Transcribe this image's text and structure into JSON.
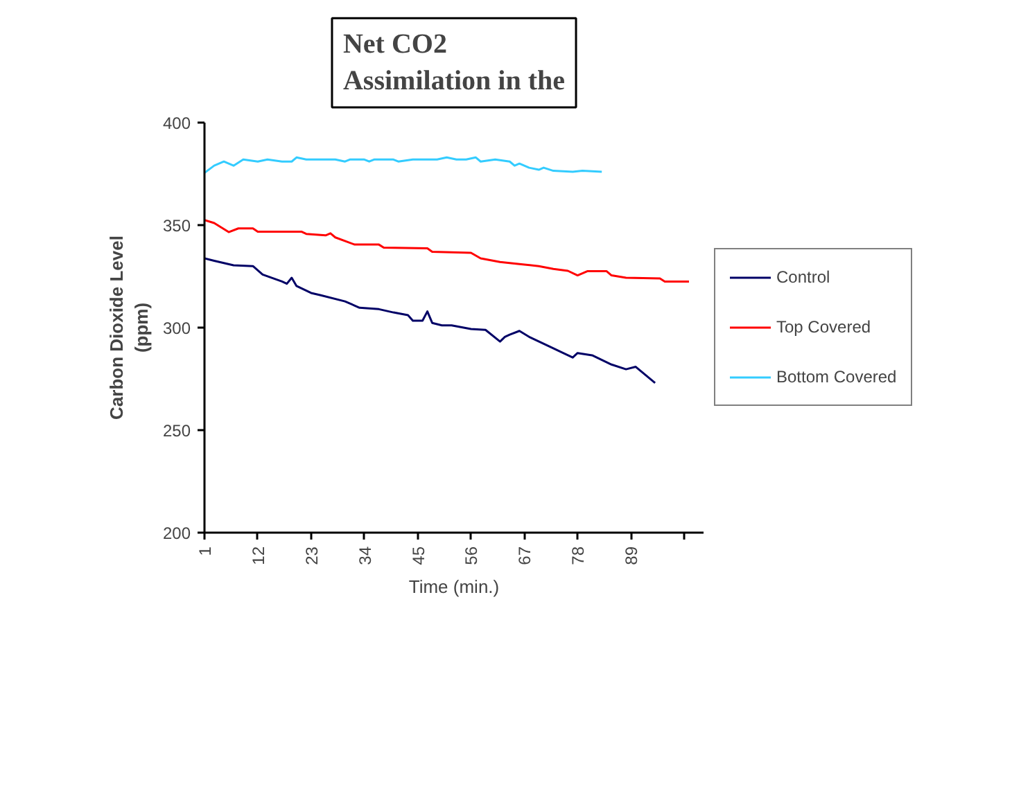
{
  "chart_data": {
    "type": "line",
    "title": "Net CO2\nAssimilation in the",
    "xlabel": "Time (min.)",
    "ylabel": "Carbon Dioxide Level\n(ppm)",
    "xlim": [
      1,
      104
    ],
    "xticks": [
      1,
      12,
      23,
      34,
      45,
      56,
      67,
      78,
      89,
      {
        "value": 100,
        "label": null
      }
    ],
    "ylim": [
      200,
      400
    ],
    "yticks": [
      200,
      250,
      300,
      350,
      400
    ],
    "grid": false,
    "legend": "right",
    "marker": "none",
    "line_style": "solid",
    "series": [
      {
        "name": "Control",
        "color": "#000066",
        "x": [
          1,
          3,
          7,
          11,
          13,
          17,
          18,
          19,
          20,
          23,
          25,
          30,
          33,
          37,
          40,
          43,
          44,
          46,
          47,
          48,
          50,
          52,
          56,
          59,
          62,
          63,
          64,
          66,
          68,
          73,
          77,
          78,
          81,
          85,
          88,
          90,
          94
        ],
        "values": [
          333.8,
          332.6,
          330.4,
          330,
          325.9,
          322.5,
          321.4,
          324.3,
          320.3,
          316.9,
          315.8,
          312.8,
          309.7,
          309,
          307.4,
          306.1,
          303.4,
          303.4,
          307.9,
          302.3,
          301.1,
          301.1,
          299.3,
          298.9,
          293.2,
          295.5,
          296.6,
          298.4,
          295.5,
          289.9,
          285.4,
          287.6,
          286.5,
          282,
          279.7,
          280.9,
          273
        ]
      },
      {
        "name": "Top Covered",
        "color": "#ff0000",
        "x": [
          1,
          3,
          6,
          8,
          11,
          12,
          21,
          22,
          26,
          27,
          28,
          32,
          37,
          38,
          47,
          48,
          56,
          58,
          62,
          66,
          70,
          73,
          76,
          78,
          80,
          84,
          85,
          88,
          95,
          96,
          101
        ],
        "values": [
          352.5,
          351,
          346.6,
          348.4,
          348.4,
          346.8,
          346.8,
          345.7,
          345,
          346,
          344,
          340.5,
          340.5,
          339,
          338.7,
          337,
          336.5,
          333.8,
          332,
          331,
          330,
          328.6,
          327.7,
          325.5,
          327.5,
          327.5,
          325.5,
          324.3,
          324,
          322.5,
          322.5
        ]
      },
      {
        "name": "Bottom Covered",
        "color": "#33ccff",
        "x": [
          1,
          3,
          5,
          7,
          9,
          12,
          14,
          17,
          19,
          20,
          22,
          28,
          30,
          31,
          34,
          35,
          36,
          40,
          41,
          44,
          49,
          51,
          53,
          55,
          57,
          58,
          61,
          64,
          65,
          66,
          68,
          70,
          71,
          73,
          77,
          79,
          83
        ],
        "values": [
          375.5,
          379,
          381,
          379,
          382,
          381,
          382,
          381,
          381,
          383,
          382,
          382,
          381,
          382,
          382,
          381,
          382,
          382,
          381,
          382,
          382,
          383,
          382,
          382,
          383,
          381,
          382,
          381,
          379,
          380,
          378,
          377,
          378,
          376.5,
          376,
          376.5,
          376
        ]
      }
    ]
  }
}
